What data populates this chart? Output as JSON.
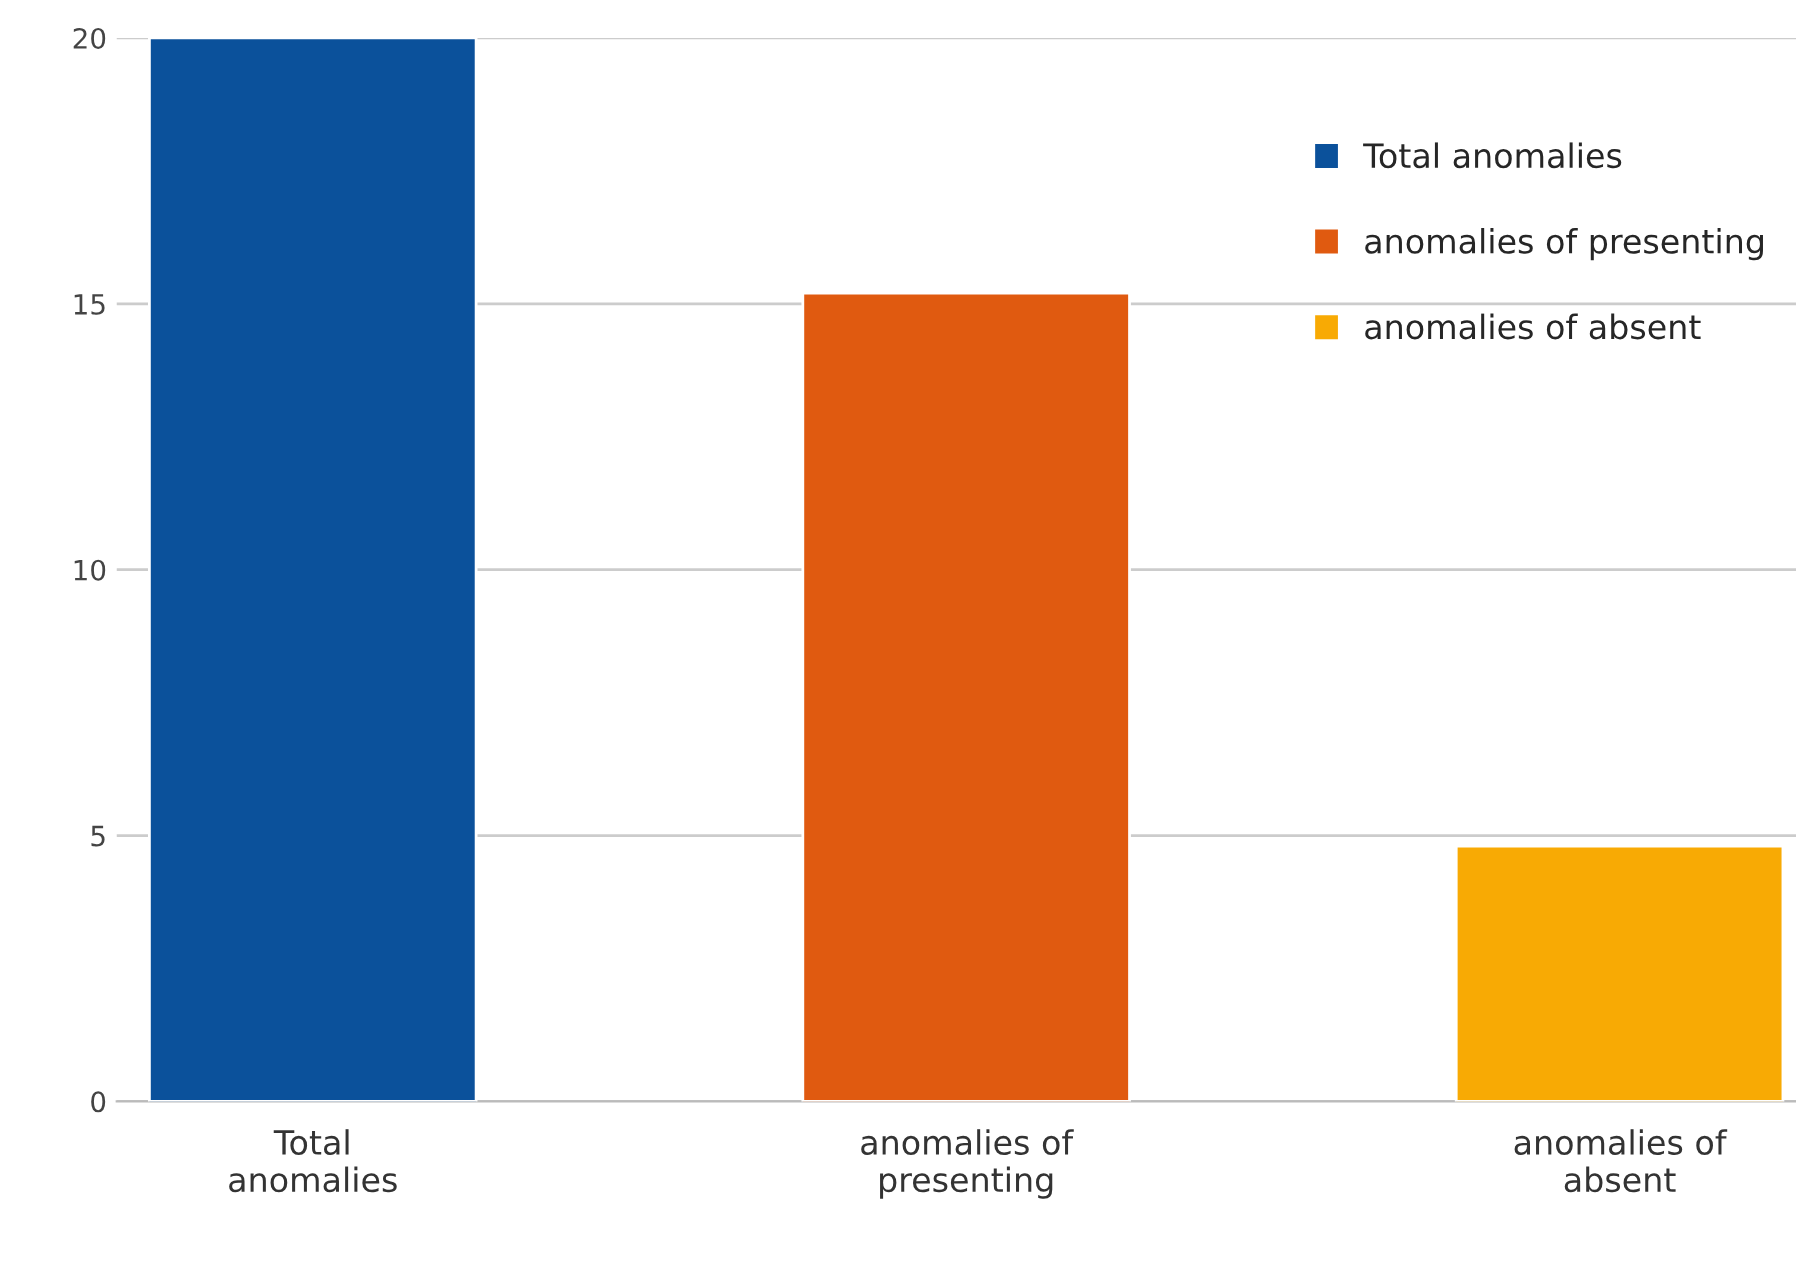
{
  "chart_data": {
    "type": "bar",
    "categories": [
      "Total\nanomalies",
      "anomalies of\npresenting",
      "anomalies of\nabsent"
    ],
    "series": [
      {
        "name": "Total anomalies",
        "color": "#0b519b",
        "values": [
          20,
          null,
          null
        ]
      },
      {
        "name": "anomalies of presenting",
        "color": "#e05a10",
        "values": [
          null,
          15.2,
          null
        ]
      },
      {
        "name": "anomalies of absent",
        "color": "#f8aa04",
        "values": [
          null,
          null,
          4.8
        ]
      }
    ],
    "ylim": [
      0,
      20
    ],
    "yticks": [
      0,
      5,
      10,
      15,
      20
    ],
    "grid": "y",
    "legend": "top right"
  }
}
